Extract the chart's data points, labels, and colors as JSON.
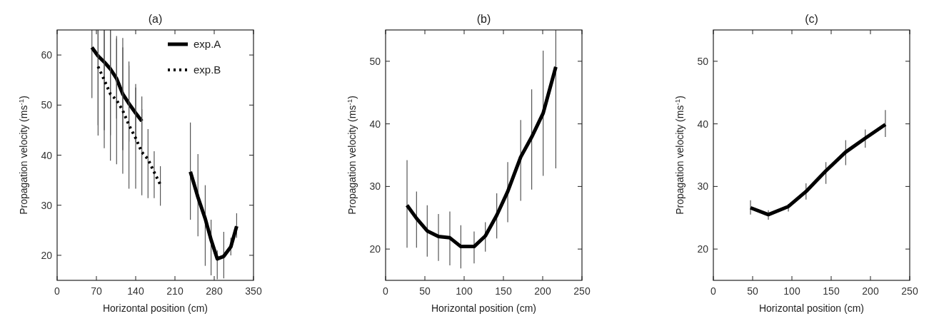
{
  "chart_data": [
    {
      "type": "line",
      "title": "(a)",
      "xlabel": "Horizontal position (cm)",
      "ylabel": "Propagation velocity (ms$^{-1}$)",
      "xlim": [
        0,
        350
      ],
      "xticks": [
        0,
        70,
        140,
        210,
        280,
        350
      ],
      "ylim": [
        15,
        65
      ],
      "yticks": [
        20,
        30,
        40,
        50,
        60
      ],
      "legend": "top right",
      "grid": false,
      "series": [
        {
          "name": "exp.A",
          "color": "#000000",
          "line_style": "solid",
          "x": [
            62,
            73,
            84,
            95,
            106,
            117,
            128,
            140,
            151,
            195,
            237.5,
            251,
            264,
            274.4,
            285.4,
            297,
            309.6,
            320
          ],
          "values": [
            61.5,
            59.8,
            58.6,
            57.2,
            55.3,
            52.2,
            50.3,
            48.4,
            46.8,
            null,
            36.7,
            31.6,
            27.3,
            23.1,
            19.3,
            19.8,
            21.7,
            25.8
          ],
          "errors": [
            [
              51.4,
              65
            ],
            [
              46,
              65
            ],
            [
              45,
              65
            ],
            [
              44,
              65
            ],
            [
              47.3,
              63.3
            ],
            [
              41,
              63.4
            ],
            [
              42.7,
              57.9
            ],
            [
              42.6,
              54.2
            ],
            [
              41.9,
              51.7
            ],
            null,
            [
              27.1,
              46.5
            ],
            [
              23.8,
              40.2
            ],
            [
              17.9,
              34
            ],
            [
              16,
              27.1
            ],
            [
              15.2,
              21
            ],
            [
              15.4,
              24.7
            ],
            [
              20,
              23.5
            ],
            [
              23.5,
              28.4
            ]
          ]
        },
        {
          "name": "exp.B",
          "color": "#000000",
          "line_style": "dotted",
          "x": [
            73,
            84,
            95,
            106,
            117,
            128,
            140,
            151,
            162,
            173,
            184
          ],
          "values": [
            57.7,
            55,
            52.2,
            51,
            48.9,
            46,
            43.4,
            40.6,
            39.2,
            36.6,
            34.1
          ],
          "errors": [
            [
              43.9,
              65
            ],
            [
              41.4,
              65
            ],
            [
              38.9,
              65
            ],
            [
              38.2,
              63.8
            ],
            [
              36.3,
              61.5
            ],
            [
              33.3,
              58.7
            ],
            [
              33.3,
              53.5
            ],
            [
              32,
              49.2
            ],
            [
              31.4,
              45.2
            ],
            [
              31.4,
              40.8
            ],
            [
              29.9,
              37.8
            ]
          ]
        }
      ]
    },
    {
      "type": "line",
      "title": "(b)",
      "xlabel": "Horizontal position (cm)",
      "ylabel": "Propagation velocity (ms$^{-1}$)",
      "xlim": [
        0,
        250
      ],
      "xticks": [
        0,
        50,
        100,
        150,
        200,
        250
      ],
      "ylim": [
        15,
        55
      ],
      "yticks": [
        20,
        30,
        40,
        50
      ],
      "grid": false,
      "series": [
        {
          "color": "#000000",
          "line_style": "solid",
          "x": [
            27.3,
            39.4,
            53,
            67.3,
            81.8,
            95.8,
            112.7,
            127,
            141.5,
            155.5,
            172,
            186,
            200.6,
            216.7
          ],
          "values": [
            27,
            24.9,
            22.9,
            22,
            21.8,
            20.4,
            20.4,
            22.1,
            25.4,
            29.2,
            34.7,
            37.9,
            41.7,
            49.1
          ],
          "errors": [
            [
              20.2,
              34.2
            ],
            [
              20.2,
              29.2
            ],
            [
              18.8,
              27
            ],
            [
              18.1,
              25.6
            ],
            [
              17.4,
              26
            ],
            [
              16.9,
              23.8
            ],
            [
              17.7,
              22.8
            ],
            [
              19.6,
              24.3
            ],
            [
              21.7,
              28.9
            ],
            [
              24.3,
              33.9
            ],
            [
              27.7,
              40.6
            ],
            [
              29.5,
              45.5
            ],
            [
              31.7,
              51.7
            ],
            [
              32.9,
              55
            ]
          ]
        }
      ]
    },
    {
      "type": "line",
      "title": "(c)",
      "xlabel": "Horizontal position (cm)",
      "ylabel": "Propagation velocity (ms$^{-1}$)",
      "xlim": [
        0,
        250
      ],
      "xticks": [
        0,
        50,
        100,
        150,
        200,
        250
      ],
      "ylim": [
        15,
        55
      ],
      "yticks": [
        20,
        30,
        40,
        50
      ],
      "grid": false,
      "series": [
        {
          "color": "#000000",
          "line_style": "solid",
          "x": [
            47.3,
            70,
            95.5,
            118,
            143.3,
            168.5,
            193.4,
            219
          ],
          "values": [
            26.6,
            25.5,
            26.8,
            29.2,
            32.5,
            35.5,
            37.7,
            39.9
          ],
          "errors": [
            [
              25.5,
              27.8
            ],
            [
              24.7,
              26.2
            ],
            [
              26,
              27.2
            ],
            [
              27.9,
              30.5
            ],
            [
              30.4,
              33.9
            ],
            [
              33.4,
              37.4
            ],
            [
              36.2,
              39.1
            ],
            [
              37.9,
              42.2
            ]
          ]
        }
      ]
    }
  ]
}
